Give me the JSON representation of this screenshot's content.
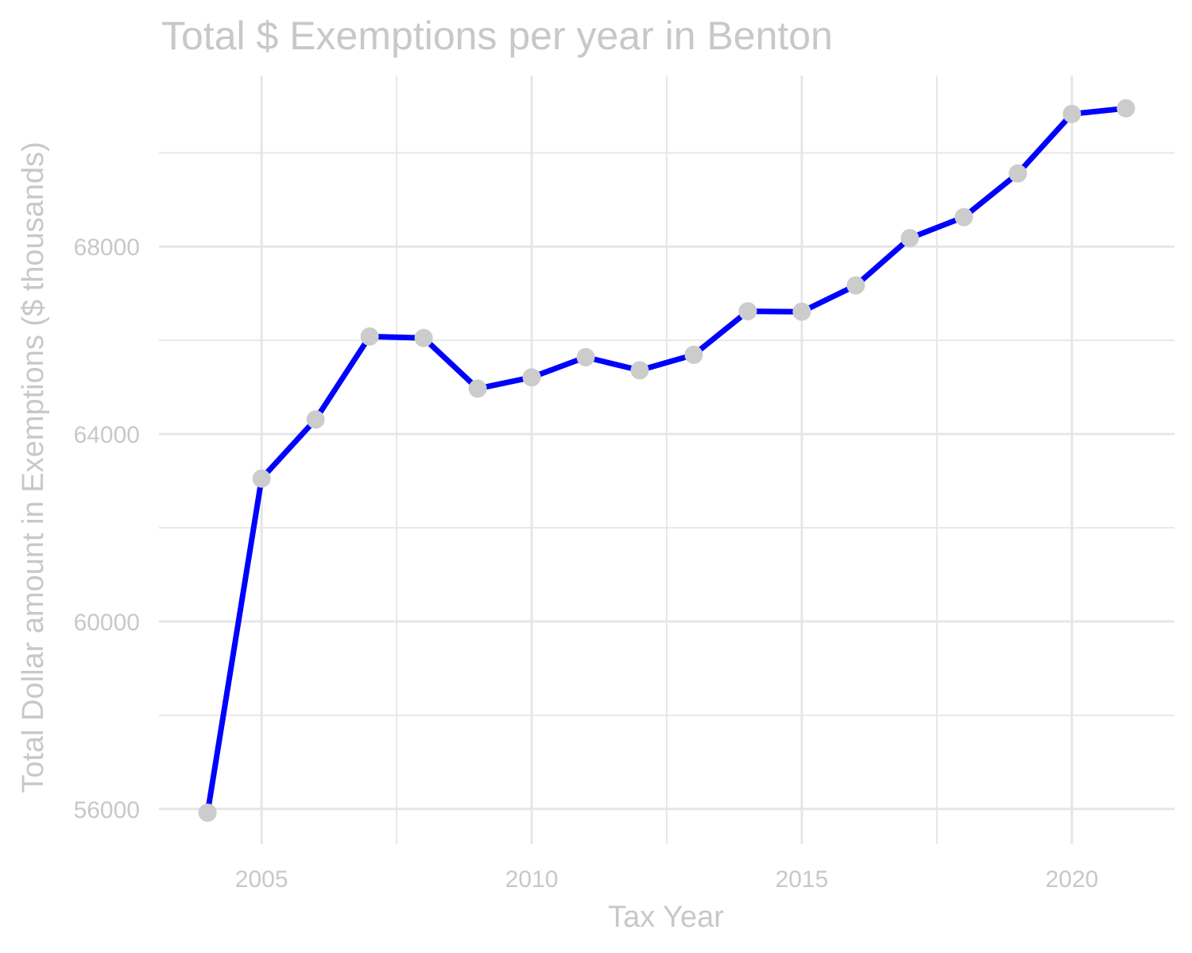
{
  "chart_data": {
    "type": "line",
    "title": "Total $ Exemptions per year in Benton",
    "xlabel": "Tax Year",
    "ylabel": "Total Dollar amount in Exemptions ($ thousands)",
    "x": [
      2004,
      2005,
      2006,
      2007,
      2008,
      2009,
      2010,
      2011,
      2012,
      2013,
      2014,
      2015,
      2016,
      2017,
      2018,
      2019,
      2020,
      2021
    ],
    "series": [
      {
        "values": [
          55920,
          63050,
          64310,
          66080,
          66050,
          64970,
          65210,
          65640,
          65360,
          65690,
          66620,
          66610,
          67170,
          68180,
          68630,
          69560,
          70830,
          70950
        ]
      }
    ],
    "xlim": [
      2003.1,
      2021.9
    ],
    "ylim": [
      55250,
      71650
    ],
    "x_ticks": [
      2005,
      2010,
      2015,
      2020
    ],
    "x_tick_labels": [
      "2005",
      "2010",
      "2015",
      "2020"
    ],
    "y_ticks": [
      56000,
      60000,
      64000,
      68000
    ],
    "y_tick_labels": [
      "56000",
      "60000",
      "64000",
      "68000"
    ],
    "grid": true,
    "legend": "none",
    "colors": {
      "line": "#0000ff",
      "points": "#cccccc",
      "grid": "#e6e6e6",
      "text": "#c8c8c8"
    }
  }
}
